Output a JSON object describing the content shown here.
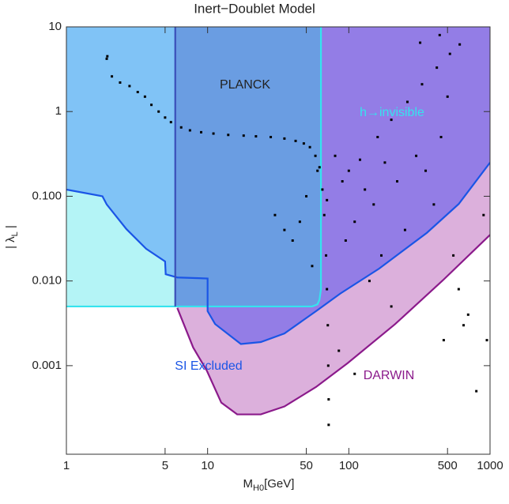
{
  "chart_data": {
    "type": "scatter",
    "title": "Inert−Doublet Model",
    "xlabel": {
      "main": "M",
      "sub": "H0",
      "unit": "[GeV]"
    },
    "ylabel": {
      "main": "| λ",
      "sub": "L",
      "end": " |"
    },
    "xscale": "log",
    "yscale": "log",
    "xlim": [
      1,
      1000
    ],
    "ylim": [
      9e-05,
      10
    ],
    "xticks": [
      1,
      5,
      10,
      50,
      100,
      500,
      1000
    ],
    "yticks": [
      10,
      1,
      {
        "value": 0.1,
        "label": "0.100"
      },
      {
        "value": 0.01,
        "label": "0.010"
      },
      {
        "value": 0.001,
        "label": "0.001"
      }
    ],
    "regions": [
      {
        "label": "DARWIN",
        "color": "#dcb0dc",
        "line": "#8b1a8b",
        "x": [
          6.1,
          7.9,
          9.9,
          12.5,
          16.2,
          23.8,
          35,
          58.6,
          98,
          213,
          464,
          1000
        ],
        "y": [
          0.0048,
          0.00164,
          0.000865,
          0.000366,
          0.000266,
          0.000266,
          0.00033,
          0.00056,
          0.00107,
          0.0031,
          0.0102,
          0.035
        ]
      },
      {
        "label": "h→invisible",
        "color": "#b4f4f6",
        "line": "#35e4ee",
        "x": [
          1,
          55,
          60,
          62,
          63.5,
          63.5
        ],
        "y": [
          0.005,
          0.005,
          0.0053,
          0.006,
          0.008,
          10
        ]
      },
      {
        "label": "SI Excluded",
        "color": "#80c3f6",
        "line": "#1a55e6",
        "x": [
          1,
          1.8,
          1.93,
          2.66,
          3.67,
          5.0,
          5.05,
          6.1,
          10,
          10,
          11.3,
          17.2,
          23.8,
          35,
          58.6,
          87,
          164,
          357,
          600,
          1000
        ],
        "y": [
          0.12,
          0.1,
          0.08,
          0.041,
          0.024,
          0.017,
          0.012,
          0.011,
          0.0107,
          0.0044,
          0.0031,
          0.0018,
          0.0019,
          0.0024,
          0.0044,
          0.0071,
          0.014,
          0.037,
          0.081,
          0.25
        ]
      },
      {
        "color": "#937de6",
        "x": [
          10,
          10,
          11.3,
          17.2,
          23.8,
          35,
          58.6,
          87,
          164,
          357,
          600,
          1000
        ],
        "y": [
          0.0107,
          0.0044,
          0.0031,
          0.0018,
          0.0019,
          0.0024,
          0.0044,
          0.0071,
          0.014,
          0.037,
          0.081,
          0.25
        ]
      },
      {
        "label": "PLANCK",
        "color": "#6a9de2",
        "line": "#3a4fb8",
        "x": [
          5.9,
          5.9,
          55,
          60,
          62,
          63.5,
          63.5
        ],
        "y": [
          10,
          0.005,
          0.005,
          0.0053,
          0.006,
          0.008,
          10
        ]
      }
    ],
    "series": [
      {
        "color": "#000000",
        "x": [
          1.93,
          1.95,
          2.1,
          2.4,
          2.8,
          3.2,
          3.6,
          4.0,
          4.5,
          5.0,
          5.5,
          6.5,
          7.5,
          9,
          11,
          14,
          18,
          22,
          28,
          35,
          42,
          48,
          53,
          58,
          62,
          65,
          67,
          69,
          70,
          71,
          71.5,
          72,
          72,
          70,
          90,
          120,
          160,
          200,
          260,
          330,
          420,
          520,
          610,
          80,
          100,
          130,
          150,
          180,
          220,
          110,
          95,
          140,
          170,
          200,
          250,
          300,
          350,
          400,
          450,
          500,
          550,
          600,
          700,
          800,
          900,
          950,
          650,
          45,
          40,
          35,
          50,
          55,
          30,
          60,
          85,
          110,
          320,
          440,
          470
        ],
        "y": [
          4.2,
          4.5,
          2.6,
          2.2,
          2.0,
          1.7,
          1.5,
          1.2,
          1.0,
          0.85,
          0.75,
          0.65,
          0.6,
          0.57,
          0.55,
          0.53,
          0.52,
          0.51,
          0.5,
          0.48,
          0.45,
          0.42,
          0.38,
          0.3,
          0.22,
          0.12,
          0.06,
          0.02,
          0.008,
          0.003,
          0.001,
          0.0004,
          0.0002,
          0.09,
          0.15,
          0.27,
          0.5,
          0.8,
          1.3,
          2.1,
          3.3,
          4.8,
          6.2,
          0.3,
          0.2,
          0.12,
          0.08,
          0.25,
          0.15,
          0.05,
          0.03,
          0.01,
          0.02,
          0.005,
          0.04,
          0.3,
          0.2,
          0.08,
          0.5,
          1.5,
          0.02,
          0.008,
          0.004,
          0.0005,
          0.06,
          0.002,
          0.003,
          0.05,
          0.03,
          0.04,
          0.1,
          0.015,
          0.06,
          0.2,
          0.0015,
          0.0008,
          6.5,
          8,
          0.002
        ]
      }
    ]
  }
}
